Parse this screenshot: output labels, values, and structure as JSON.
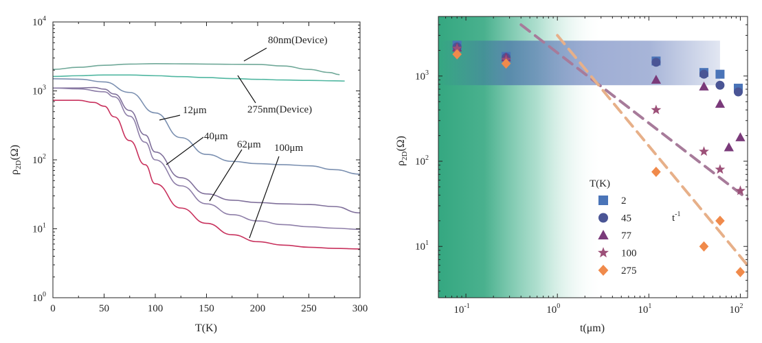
{
  "chart_data": [
    {
      "type": "line",
      "xlabel": "T(K)",
      "ylabel": "ρ2D(Ω)",
      "ylabel_main": "ρ",
      "ylabel_sub": "2D",
      "ylabel_unit": "(Ω)",
      "xlim": [
        0,
        300
      ],
      "ylim": [
        1,
        10000
      ],
      "yscale": "log",
      "x_ticks": [
        "0",
        "50",
        "100",
        "150",
        "200",
        "250",
        "300"
      ],
      "y_tick_bases": [
        "10",
        "10",
        "10",
        "10",
        "10"
      ],
      "y_tick_exps": [
        "0",
        "1",
        "2",
        "3",
        "4"
      ],
      "series": [
        {
          "name": "80nm(Device)",
          "color": "#6fa898",
          "x": [
            0,
            25,
            50,
            75,
            100,
            125,
            150,
            175,
            200,
            225,
            250,
            270,
            280
          ],
          "y": [
            2050,
            2200,
            2350,
            2450,
            2480,
            2470,
            2450,
            2430,
            2420,
            2300,
            2050,
            1850,
            1720
          ]
        },
        {
          "name": "275nm(Device)",
          "color": "#4fb6a0",
          "x": [
            0,
            25,
            50,
            75,
            100,
            125,
            150,
            175,
            200,
            225,
            250,
            275,
            285
          ],
          "y": [
            1620,
            1660,
            1700,
            1700,
            1660,
            1610,
            1560,
            1510,
            1470,
            1440,
            1420,
            1400,
            1390
          ]
        },
        {
          "name": "12μm",
          "color": "#7a8fb0",
          "x": [
            0,
            25,
            50,
            75,
            100,
            125,
            150,
            175,
            200,
            225,
            250,
            275,
            300
          ],
          "y": [
            1500,
            1480,
            1350,
            950,
            480,
            210,
            120,
            95,
            88,
            85,
            82,
            72,
            62
          ]
        },
        {
          "name": "40μm",
          "color": "#7f6f9a",
          "x": [
            0,
            25,
            40,
            50,
            60,
            75,
            90,
            100,
            125,
            150,
            175,
            200,
            225,
            250,
            275,
            300
          ],
          "y": [
            1100,
            1100,
            1120,
            1060,
            900,
            520,
            230,
            130,
            55,
            32,
            26,
            24,
            23,
            22.5,
            21,
            17
          ]
        },
        {
          "name": "62μm",
          "color": "#8d7ea8",
          "x": [
            0,
            25,
            50,
            60,
            75,
            90,
            100,
            125,
            150,
            175,
            200,
            225,
            250,
            275,
            300
          ],
          "y": [
            1100,
            1070,
            970,
            820,
            430,
            180,
            100,
            42,
            23,
            16,
            13,
            11.5,
            10.7,
            10.2,
            9.8
          ]
        },
        {
          "name": "100μm",
          "color": "#c8305c",
          "x": [
            0,
            25,
            40,
            50,
            60,
            75,
            90,
            100,
            125,
            150,
            175,
            200,
            225,
            250,
            275,
            300
          ],
          "y": [
            730,
            730,
            680,
            600,
            420,
            190,
            85,
            45,
            20,
            12,
            8.2,
            6.5,
            5.8,
            5.4,
            5.2,
            5.1
          ]
        }
      ],
      "annotations": [
        {
          "text": "80nm(Device)"
        },
        {
          "text": "275nm(Device)"
        },
        {
          "text": "12μm"
        },
        {
          "text": "40μm"
        },
        {
          "text": "62μm"
        },
        {
          "text": "100μm"
        }
      ]
    },
    {
      "type": "scatter",
      "xlabel": "t(μm)",
      "ylabel": "ρ2D(Ω)",
      "ylabel_main": "ρ",
      "ylabel_sub": "2D",
      "ylabel_unit": "(Ω)",
      "xscale": "log",
      "yscale": "log",
      "xlim": [
        0.05,
        120
      ],
      "ylim": [
        2.5,
        5000
      ],
      "x_tick_bases": [
        "10",
        "10",
        "10",
        "10"
      ],
      "x_tick_exps": [
        "-1",
        "0",
        "1",
        "2"
      ],
      "y_tick_bases": [
        "10",
        "10",
        "10"
      ],
      "y_tick_exps": [
        "1",
        "2",
        "3"
      ],
      "legend_title": "T(K)",
      "legend_position": "bottom-center",
      "fit_label_base": "t",
      "fit_label_exp": "-1",
      "series": [
        {
          "name": "2",
          "marker": "square",
          "color": "#4a74b8",
          "x": [
            0.08,
            0.275,
            12,
            40,
            60,
            95
          ],
          "y": [
            2300,
            1700,
            1500,
            1100,
            1050,
            720
          ]
        },
        {
          "name": "45",
          "marker": "circle",
          "color": "#4a5595",
          "x": [
            0.08,
            0.275,
            12,
            40,
            60,
            95
          ],
          "y": [
            2200,
            1650,
            1450,
            1050,
            780,
            650
          ]
        },
        {
          "name": "77",
          "marker": "triangle",
          "color": "#7a3a7a",
          "x": [
            0.08,
            0.275,
            12,
            40,
            60,
            75,
            100
          ],
          "y": [
            2150,
            1650,
            900,
            750,
            470,
            145,
            190
          ]
        },
        {
          "name": "100",
          "marker": "star",
          "color": "#9c5078",
          "x": [
            0.08,
            0.275,
            12,
            40,
            60,
            100
          ],
          "y": [
            2100,
            1550,
            400,
            130,
            80,
            45
          ]
        },
        {
          "name": "275",
          "marker": "diamond",
          "color": "#f08a4b",
          "x": [
            0.08,
            0.275,
            12,
            40,
            60,
            100
          ],
          "y": [
            1800,
            1400,
            75,
            10,
            20,
            5
          ]
        }
      ],
      "fit_lines": [
        {
          "color": "#a77b9a",
          "x": [
            0.4,
            120
          ],
          "y": [
            4000,
            36
          ]
        },
        {
          "color": "#e7b089",
          "x": [
            1.0,
            120
          ],
          "y": [
            3000,
            6
          ]
        }
      ],
      "band": {
        "y_range": [
          780,
          2600
        ],
        "x_range": [
          0.05,
          60
        ],
        "color": "#3c5aa8"
      },
      "shade": {
        "x_range": [
          0.05,
          3
        ],
        "color": "#2aa37a"
      }
    }
  ]
}
